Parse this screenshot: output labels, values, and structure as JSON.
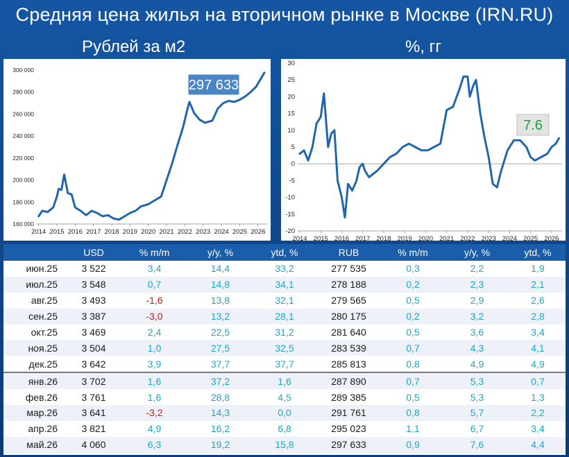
{
  "title": "Средняя цена жилья на вторичном рынке в Москве (IRN.RU)",
  "left_subtitle": "Рублей за м2",
  "right_subtitle": "%, гг",
  "chart_data": [
    {
      "type": "line",
      "title": "Рублей за м2",
      "ylim": [
        160000,
        300000
      ],
      "yticks": [
        "160 000",
        "180 000",
        "200 000",
        "220 000",
        "240 000",
        "260 000",
        "280 000",
        "300 000"
      ],
      "xticks": [
        "2014",
        "2015",
        "2016",
        "2017",
        "2018",
        "2019",
        "2020",
        "2021",
        "2022",
        "2023",
        "2024",
        "2025",
        "2026"
      ],
      "annotation": "297 633",
      "series": [
        {
          "x": [
            2014.0,
            2014.2,
            2014.5,
            2014.8,
            2015.0,
            2015.1,
            2015.25,
            2015.4,
            2015.6,
            2015.8,
            2016.0,
            2016.3,
            2016.6,
            2016.9,
            2017.2,
            2017.5,
            2017.8,
            2018.1,
            2018.4,
            2018.7,
            2019.0,
            2019.3,
            2019.6,
            2020.0,
            2020.4,
            2020.7,
            2021.0,
            2021.3,
            2021.6,
            2021.9,
            2022.1,
            2022.25,
            2022.5,
            2022.8,
            2023.1,
            2023.5,
            2023.8,
            2024.1,
            2024.4,
            2024.7,
            2025.0,
            2025.3,
            2025.6,
            2025.9,
            2026.15,
            2026.35
          ],
          "y": [
            167000,
            172000,
            171000,
            175000,
            185000,
            192000,
            191000,
            205000,
            188000,
            187000,
            175000,
            172000,
            168000,
            172000,
            170000,
            167000,
            168000,
            165000,
            164000,
            167000,
            170000,
            172000,
            176000,
            178000,
            182000,
            185000,
            200000,
            215000,
            232000,
            248000,
            262000,
            271000,
            261000,
            255000,
            252000,
            254000,
            265000,
            270000,
            272000,
            271000,
            273000,
            276000,
            280000,
            285000,
            292000,
            297633
          ]
        }
      ]
    },
    {
      "type": "line",
      "title": "%, гг",
      "ylim": [
        -20,
        30
      ],
      "yticks": [
        "-20",
        "-15",
        "-10",
        "-5",
        "0",
        "5",
        "10",
        "15",
        "20",
        "25",
        "30"
      ],
      "xticks": [
        "2014",
        "2015",
        "2016",
        "2017",
        "2018",
        "2019",
        "2020",
        "2021",
        "2022",
        "2023",
        "2024",
        "2025",
        "2026"
      ],
      "annotation": "7.6",
      "series": [
        {
          "x": [
            2014.0,
            2014.2,
            2014.4,
            2014.6,
            2014.8,
            2015.0,
            2015.15,
            2015.35,
            2015.5,
            2015.65,
            2015.8,
            2016.0,
            2016.15,
            2016.3,
            2016.5,
            2016.7,
            2016.85,
            2017.0,
            2017.1,
            2017.3,
            2017.5,
            2017.7,
            2018.0,
            2018.3,
            2018.6,
            2018.9,
            2019.2,
            2019.5,
            2019.8,
            2020.1,
            2020.4,
            2020.7,
            2021.0,
            2021.3,
            2021.6,
            2021.8,
            2022.0,
            2022.1,
            2022.25,
            2022.4,
            2022.6,
            2022.8,
            2023.0,
            2023.2,
            2023.4,
            2023.6,
            2023.9,
            2024.2,
            2024.5,
            2024.8,
            2025.0,
            2025.2,
            2025.5,
            2025.8,
            2026.0,
            2026.2,
            2026.35
          ],
          "y": [
            3,
            4,
            1,
            5,
            12,
            14,
            21,
            5,
            9,
            10,
            -5,
            -10,
            -16,
            -6,
            -8,
            -5,
            -1,
            0,
            -2,
            -4,
            -3,
            -2,
            0,
            2,
            3,
            5,
            6,
            5,
            4,
            4,
            5,
            6,
            16,
            17,
            22,
            26,
            26,
            20,
            23,
            25,
            15,
            8,
            2,
            -6,
            -7,
            -2,
            4,
            7,
            7,
            5,
            2,
            1,
            2,
            3,
            5,
            6,
            7.6
          ]
        }
      ]
    }
  ],
  "table": {
    "headers": [
      "",
      "USD",
      "% m/m",
      "y/y, %",
      "ytd, %",
      "RUB",
      "% m/m",
      "y/y, %",
      "ytd, %"
    ],
    "rows": [
      [
        "июн.25",
        "3 522",
        "3,4",
        "14,4",
        "33,2",
        "277 535",
        "0,3",
        "2,2",
        "1,9"
      ],
      [
        "июл.25",
        "3 548",
        "0,7",
        "14,8",
        "34,1",
        "278 188",
        "0,2",
        "2,3",
        "2,1"
      ],
      [
        "авг.25",
        "3 493",
        "-1,6",
        "13,8",
        "32,1",
        "279 565",
        "0,5",
        "2,9",
        "2,6"
      ],
      [
        "сен.25",
        "3 387",
        "-3,0",
        "13,2",
        "28,1",
        "280 175",
        "0,2",
        "3,2",
        "2,8"
      ],
      [
        "окт.25",
        "3 469",
        "2,4",
        "22,5",
        "31,2",
        "281 640",
        "0,5",
        "3,6",
        "3,4"
      ],
      [
        "ноя.25",
        "3 504",
        "1,0",
        "27,5",
        "32,5",
        "283 539",
        "0,7",
        "4,3",
        "4,1"
      ],
      [
        "дек.25",
        "3 642",
        "3,9",
        "37,7",
        "37,7",
        "285 813",
        "0,8",
        "4,9",
        "4,9"
      ],
      [
        "янв.26",
        "3 702",
        "1,6",
        "37,2",
        "1,6",
        "287 890",
        "0,7",
        "5,3",
        "0,7"
      ],
      [
        "фев.26",
        "3 761",
        "1,6",
        "28,8",
        "4,5",
        "289 385",
        "0,5",
        "5,3",
        "1,3"
      ],
      [
        "мар.26",
        "3 641",
        "-3,2",
        "14,3",
        "0,0",
        "291 761",
        "0,8",
        "5,7",
        "2,2"
      ],
      [
        "апр.26",
        "3 821",
        "4,9",
        "16,2",
        "6,8",
        "295 023",
        "1,1",
        "6,7",
        "3,4"
      ],
      [
        "май.26",
        "4 060",
        "6,3",
        "19,2",
        "15,8",
        "297 633",
        "0,9",
        "7,6",
        "4,4"
      ]
    ]
  },
  "colors": {
    "line": "#2166ad",
    "pct_text": "#16a9c8",
    "neg_text": "#c0201b",
    "header_bg": "#1a5daa",
    "badge_green": "#1a9e3a"
  }
}
